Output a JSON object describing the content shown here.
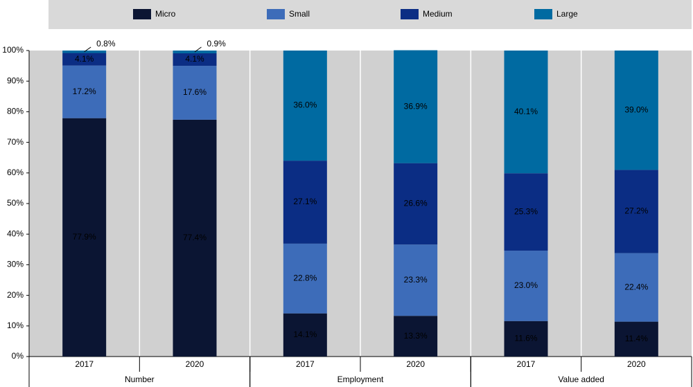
{
  "chart_data": {
    "type": "stacked-bar",
    "categories": [
      "2017",
      "2020",
      "2017",
      "2020",
      "2017",
      "2020"
    ],
    "groups": [
      "Number",
      "Employment",
      "Value added"
    ],
    "series": [
      {
        "name": "Micro",
        "color": "#0b1533",
        "values": [
          77.9,
          77.4,
          14.1,
          13.3,
          11.6,
          11.4
        ],
        "value_labels": [
          "77.9%",
          "77.4%",
          "14.1%",
          "13.3%",
          "11.6%",
          "11.4%"
        ]
      },
      {
        "name": "Small",
        "color": "#3d6cb9",
        "values": [
          17.2,
          17.6,
          22.8,
          23.3,
          23.0,
          22.4
        ],
        "value_labels": [
          "17.2%",
          "17.6%",
          "22.8%",
          "23.3%",
          "23.0%",
          "22.4%"
        ]
      },
      {
        "name": "Medium",
        "color": "#0b2d84",
        "values": [
          4.1,
          4.1,
          27.1,
          26.6,
          25.3,
          27.2
        ],
        "value_labels": [
          "4.1%",
          "4.1%",
          "27.1%",
          "26.6%",
          "25.3%",
          "27.2%"
        ]
      },
      {
        "name": "Large",
        "color": "#006aa1",
        "values": [
          0.8,
          0.9,
          36.0,
          36.9,
          40.1,
          39.0
        ],
        "value_labels": [
          "0.8%",
          "0.9%",
          "36.0%",
          "36.9%",
          "40.1%",
          "39.0%"
        ]
      }
    ],
    "ylim": [
      0,
      100
    ],
    "yticks": [
      {
        "value": 0,
        "label": "0%"
      },
      {
        "value": 10,
        "label": "10%"
      },
      {
        "value": 20,
        "label": "20%"
      },
      {
        "value": 30,
        "label": "30%"
      },
      {
        "value": 40,
        "label": "40%"
      },
      {
        "value": 50,
        "label": "50%"
      },
      {
        "value": 60,
        "label": "60%"
      },
      {
        "value": 70,
        "label": "70%"
      },
      {
        "value": 80,
        "label": "80%"
      },
      {
        "value": 90,
        "label": "90%"
      },
      {
        "value": 100,
        "label": "100%"
      }
    ],
    "grid": false
  }
}
